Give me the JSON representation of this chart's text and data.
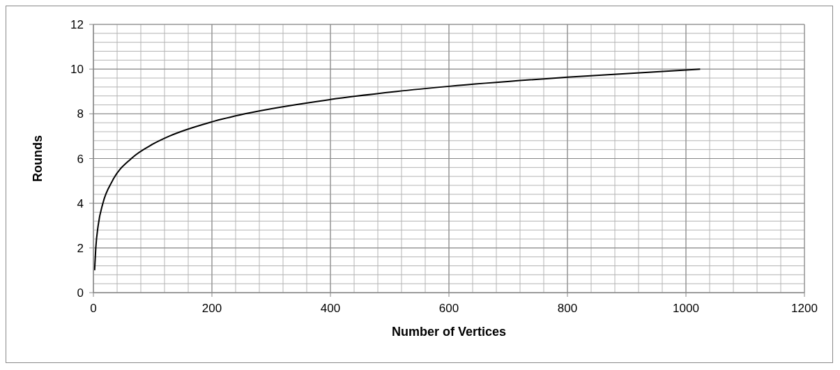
{
  "chart_data": {
    "type": "line",
    "xlabel": "Number of Vertices",
    "ylabel": "Rounds",
    "series": [
      {
        "color": "#000000",
        "x": [
          2,
          4,
          8,
          16,
          32,
          64,
          100,
          128,
          200,
          256,
          400,
          512,
          600,
          800,
          1024
        ],
        "values": [
          1,
          2,
          3,
          4,
          5,
          6,
          6.64,
          7,
          7.64,
          8,
          8.64,
          9,
          9.23,
          9.64,
          10
        ]
      }
    ],
    "xlim": [
      0,
      1200
    ],
    "xticks": [
      0,
      200,
      400,
      600,
      800,
      1000,
      1200
    ],
    "ylim": [
      0,
      12
    ],
    "yticks": [
      0,
      2,
      4,
      6,
      8,
      10,
      12
    ],
    "grid": true,
    "legend": false,
    "marker": "none",
    "line_style": "solid"
  }
}
